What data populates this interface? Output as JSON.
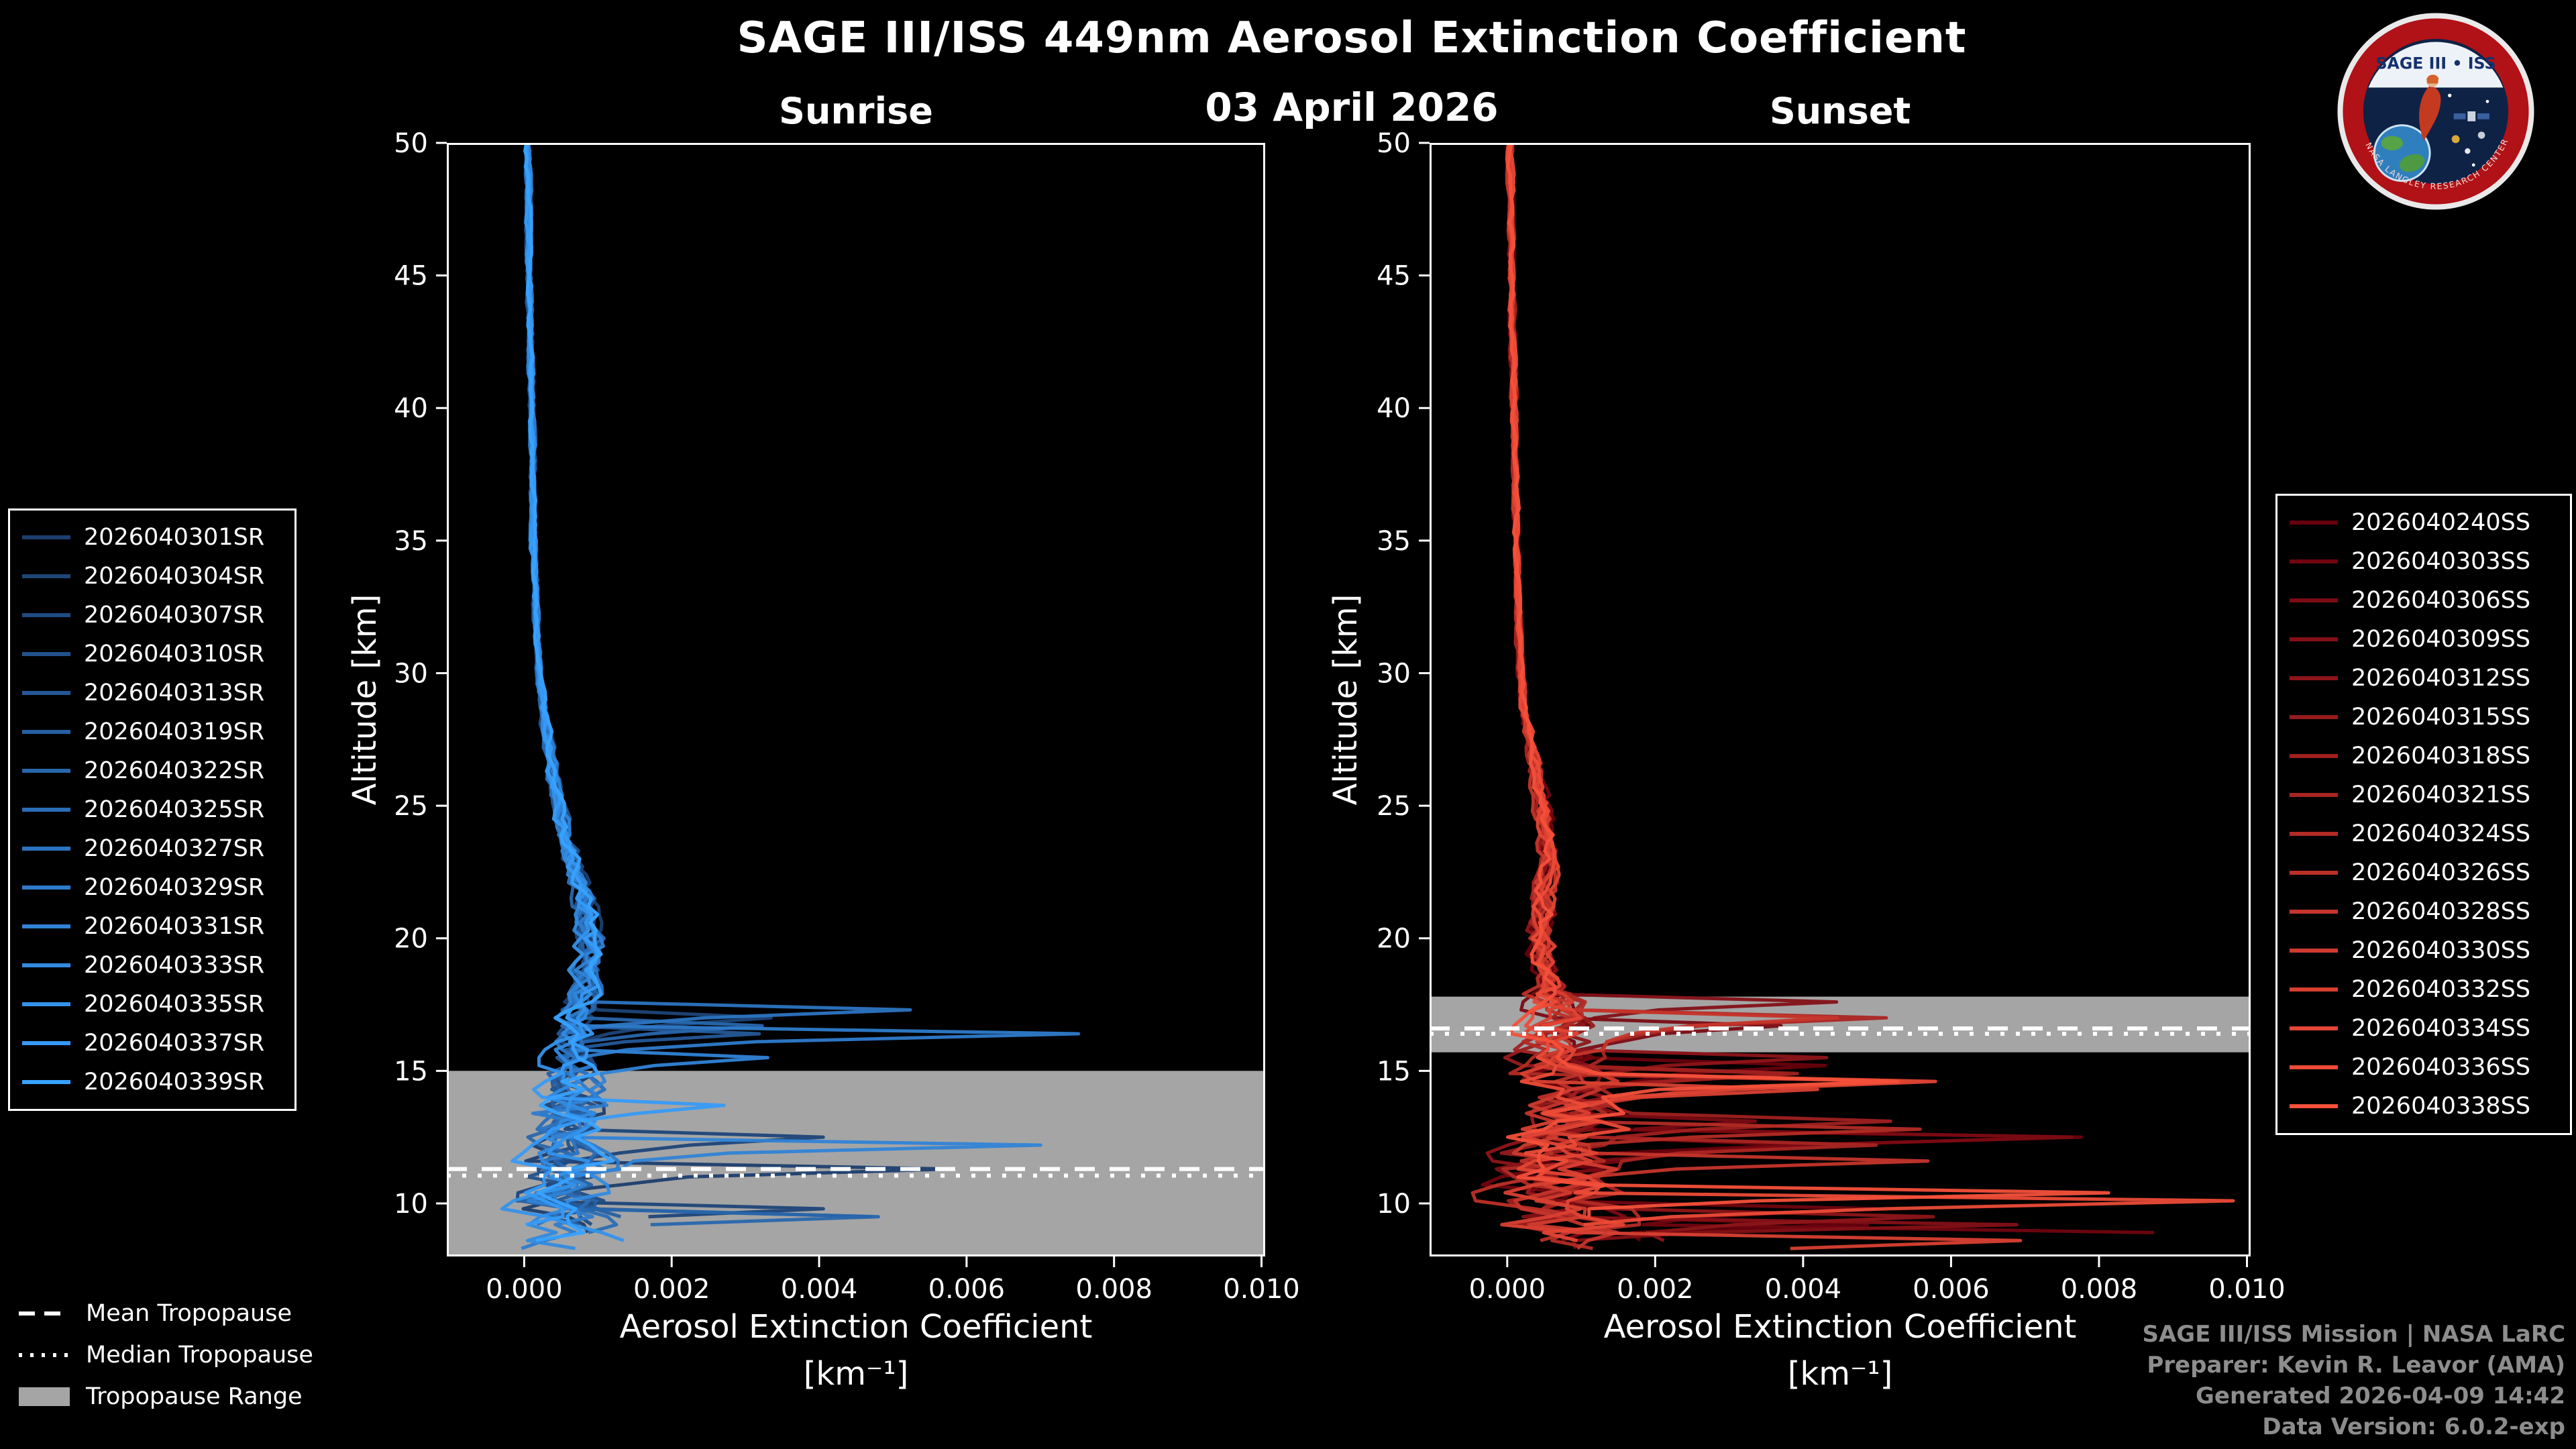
{
  "title": {
    "main": "SAGE III/ISS 449nm Aerosol Extinction Coefficient",
    "date": "03 April 2026"
  },
  "panels": [
    {
      "label": "Sunrise"
    },
    {
      "label": "Sunset"
    }
  ],
  "axes": {
    "y_label": "Altitude [km]",
    "x_label": "Aerosol Extinction Coefficient",
    "x_units": "[km⁻¹]"
  },
  "tropopause_legend": {
    "items": [
      {
        "label": "Mean Tropopause",
        "style": "dashed"
      },
      {
        "label": "Median Tropopause",
        "style": "dotted"
      },
      {
        "label": "Tropopause Range",
        "style": "band"
      }
    ]
  },
  "credits": [
    "SAGE III/ISS Mission | NASA LaRC",
    "Preparer: Kevin R. Leavor (AMA)",
    "Generated 2026-04-09 14:42",
    "Data Version: 6.0.2-exp"
  ],
  "logo": {
    "title": "SAGE III • ISS",
    "ring_text": "NASA LANGLEY RESEARCH CENTER"
  },
  "chart_data": [
    {
      "type": "line",
      "title": "Sunrise",
      "xlabel": "Aerosol Extinction Coefficient [km⁻¹]",
      "ylabel": "Altitude [km]",
      "xlim": [
        -0.00105,
        0.01005
      ],
      "ylim": [
        8,
        50
      ],
      "x_tick_values": [
        0.0,
        0.002,
        0.004,
        0.006,
        0.008,
        0.01
      ],
      "x_tick_labels": [
        "0.000",
        "0.002",
        "0.004",
        "0.006",
        "0.008",
        "0.010"
      ],
      "y_ticks": [
        10,
        15,
        20,
        25,
        30,
        35,
        40,
        45,
        50
      ],
      "grid": false,
      "legend_position": "outside-left",
      "tropopause": {
        "mean_km": 11.3,
        "median_km": 11.05,
        "range_km": [
          8.0,
          15.0
        ]
      },
      "base_profile": {
        "altitude_km": [
          50,
          45,
          40,
          35,
          32,
          30,
          28,
          26,
          24,
          22,
          21,
          20,
          19,
          18,
          17,
          16,
          15,
          14,
          13,
          12,
          11,
          10,
          9,
          8
        ],
        "extinction_per_km": [
          5e-05,
          7e-05,
          0.0001,
          0.00013,
          0.00016,
          0.0002,
          0.00028,
          0.0004,
          0.00055,
          0.00075,
          0.00085,
          0.0009,
          0.00085,
          0.0008,
          0.0007,
          0.0006,
          0.00065,
          0.0006,
          0.00065,
          0.0005,
          0.00055,
          0.0005,
          0.0006,
          0.0005
        ]
      },
      "chaos_top_km": 17.5,
      "chaos_amp": 0.0006,
      "spike_prob": 0.028,
      "spike_max": 0.0095,
      "series": [
        {
          "name": "2026040301SR",
          "color": "#1c3e6e"
        },
        {
          "name": "2026040304SR",
          "color": "#1e4578"
        },
        {
          "name": "2026040307SR",
          "color": "#204b83"
        },
        {
          "name": "2026040310SR",
          "color": "#22528d"
        },
        {
          "name": "2026040313SR",
          "color": "#245897"
        },
        {
          "name": "2026040319SR",
          "color": "#265fa2"
        },
        {
          "name": "2026040322SR",
          "color": "#2866ac"
        },
        {
          "name": "2026040325SR",
          "color": "#2a6db6"
        },
        {
          "name": "2026040327SR",
          "color": "#2c74c1"
        },
        {
          "name": "2026040329SR",
          "color": "#2e7bcb"
        },
        {
          "name": "2026040331SR",
          "color": "#3083d6"
        },
        {
          "name": "2026040333SR",
          "color": "#328ae0"
        },
        {
          "name": "2026040335SR",
          "color": "#3492ea"
        },
        {
          "name": "2026040337SR",
          "color": "#369af5"
        },
        {
          "name": "2026040339SR",
          "color": "#38a2ff"
        }
      ]
    },
    {
      "type": "line",
      "title": "Sunset",
      "xlabel": "Aerosol Extinction Coefficient [km⁻¹]",
      "ylabel": "Altitude [km]",
      "xlim": [
        -0.00105,
        0.01005
      ],
      "ylim": [
        8,
        50
      ],
      "x_tick_values": [
        0.0,
        0.002,
        0.004,
        0.006,
        0.008,
        0.01
      ],
      "x_tick_labels": [
        "0.000",
        "0.002",
        "0.004",
        "0.006",
        "0.008",
        "0.010"
      ],
      "y_ticks": [
        10,
        15,
        20,
        25,
        30,
        35,
        40,
        45,
        50
      ],
      "grid": false,
      "legend_position": "outside-right",
      "tropopause": {
        "mean_km": 16.6,
        "median_km": 16.4,
        "range_km": [
          15.7,
          17.8
        ]
      },
      "base_profile": {
        "altitude_km": [
          50,
          45,
          40,
          35,
          30,
          28,
          26,
          25,
          24,
          23,
          22,
          21,
          20,
          19,
          18,
          17,
          16,
          15,
          14,
          13,
          12,
          11,
          10,
          9,
          8
        ],
        "extinction_per_km": [
          4e-05,
          6e-05,
          9e-05,
          0.00012,
          0.00018,
          0.00026,
          0.0004,
          0.00048,
          0.00052,
          0.00055,
          0.00052,
          0.00048,
          0.00045,
          0.0005,
          0.0006,
          0.00075,
          0.0007,
          0.00065,
          0.0008,
          0.0009,
          0.0008,
          0.0007,
          0.0008,
          0.0009,
          0.0008
        ]
      },
      "chaos_top_km": 18.2,
      "chaos_amp": 0.0009,
      "spike_prob": 0.075,
      "spike_max": 0.0125,
      "series": [
        {
          "name": "2026040240SS",
          "color": "#67000d"
        },
        {
          "name": "2026040303SS",
          "color": "#700510"
        },
        {
          "name": "2026040306SS",
          "color": "#7a0b13"
        },
        {
          "name": "2026040309SS",
          "color": "#831016"
        },
        {
          "name": "2026040312SS",
          "color": "#8d1519"
        },
        {
          "name": "2026040315SS",
          "color": "#961b1c"
        },
        {
          "name": "2026040318SS",
          "color": "#9f201f"
        },
        {
          "name": "2026040321SS",
          "color": "#a92522"
        },
        {
          "name": "2026040324SS",
          "color": "#b22b25"
        },
        {
          "name": "2026040326SS",
          "color": "#bc3028"
        },
        {
          "name": "2026040328SS",
          "color": "#c5352b"
        },
        {
          "name": "2026040330SS",
          "color": "#ce3b2e"
        },
        {
          "name": "2026040332SS",
          "color": "#d84031"
        },
        {
          "name": "2026040334SS",
          "color": "#e14534"
        },
        {
          "name": "2026040336SS",
          "color": "#eb4b37"
        },
        {
          "name": "2026040338SS",
          "color": "#f4503a"
        }
      ]
    }
  ],
  "colors": {
    "background": "#000000",
    "foreground": "#ffffff",
    "tropopause_band": "#a5a5a5",
    "credits_text": "#8d8d8d",
    "logo_red": "#b01217",
    "logo_navy": "#0e2246"
  }
}
